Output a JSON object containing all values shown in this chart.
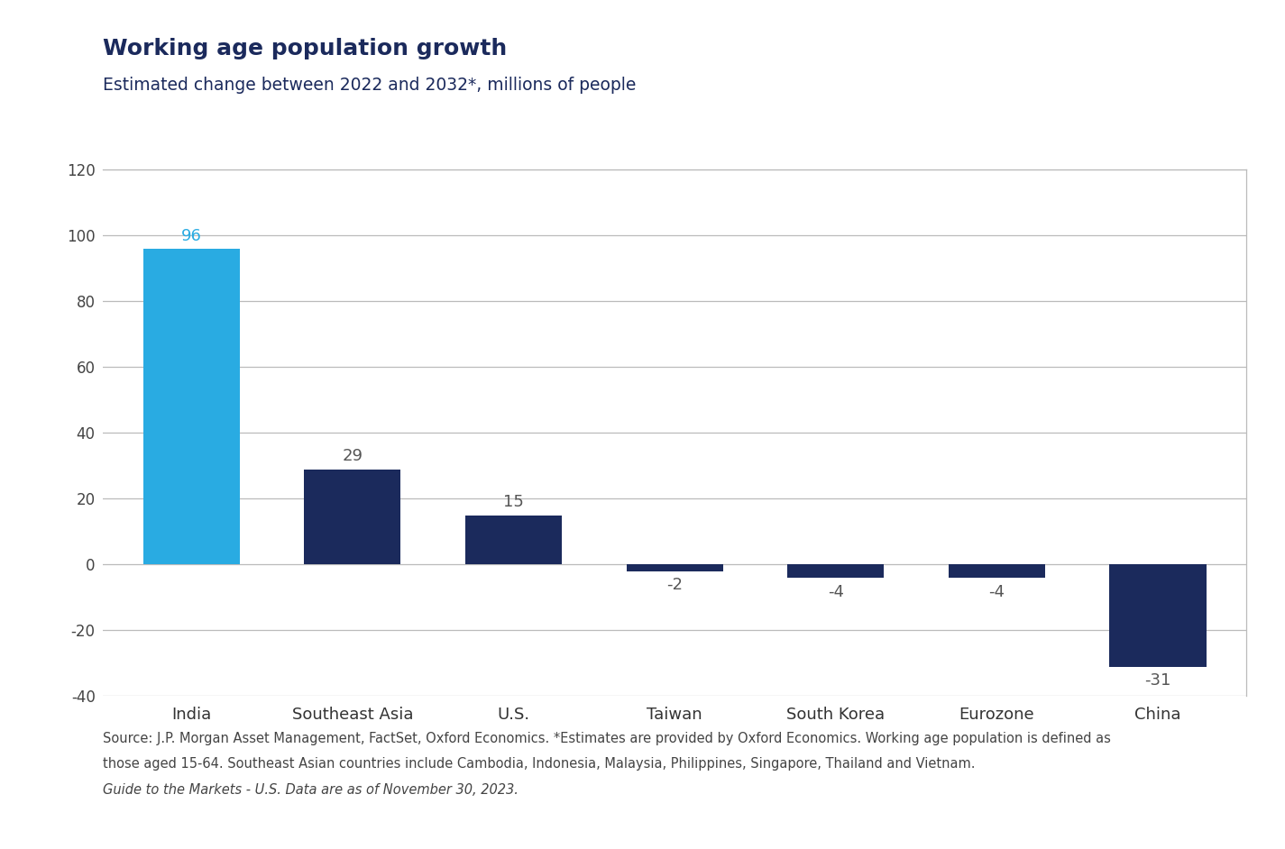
{
  "title": "Working age population growth",
  "subtitle": "Estimated change between 2022 and 2032*, millions of people",
  "categories": [
    "India",
    "Southeast Asia",
    "U.S.",
    "Taiwan",
    "South Korea",
    "Eurozone",
    "China"
  ],
  "values": [
    96,
    29,
    15,
    -2,
    -4,
    -4,
    -31
  ],
  "bar_colors": [
    "#29ABE2",
    "#1B2A5C",
    "#1B2A5C",
    "#1B2A5C",
    "#1B2A5C",
    "#1B2A5C",
    "#1B2A5C"
  ],
  "label_colors": [
    "#29ABE2",
    "#555555",
    "#555555",
    "#555555",
    "#555555",
    "#555555",
    "#555555"
  ],
  "ylim": [
    -40,
    120
  ],
  "yticks": [
    -40,
    -20,
    0,
    20,
    40,
    60,
    80,
    100,
    120
  ],
  "grid_color": "#BBBBBB",
  "background_color": "#FFFFFF",
  "title_color": "#1B2A5C",
  "subtitle_color": "#1B2A5C",
  "tick_color": "#444444",
  "title_fontsize": 18,
  "subtitle_fontsize": 13.5,
  "xtick_fontsize": 13,
  "ytick_fontsize": 12,
  "bar_label_fontsize": 13,
  "bar_width": 0.6,
  "footnote_line1": "Source: J.P. Morgan Asset Management, FactSet, Oxford Economics. *Estimates are provided by Oxford Economics. Working age population is defined as",
  "footnote_line2": "those aged 15-64. Southeast Asian countries include Cambodia, Indonesia, Malaysia, Philippines, Singapore, Thailand and Vietnam.",
  "footnote_line3": "Guide to the Markets - U.S. Data are as of November 30, 2023.",
  "footnote_fontsize": 10.5
}
